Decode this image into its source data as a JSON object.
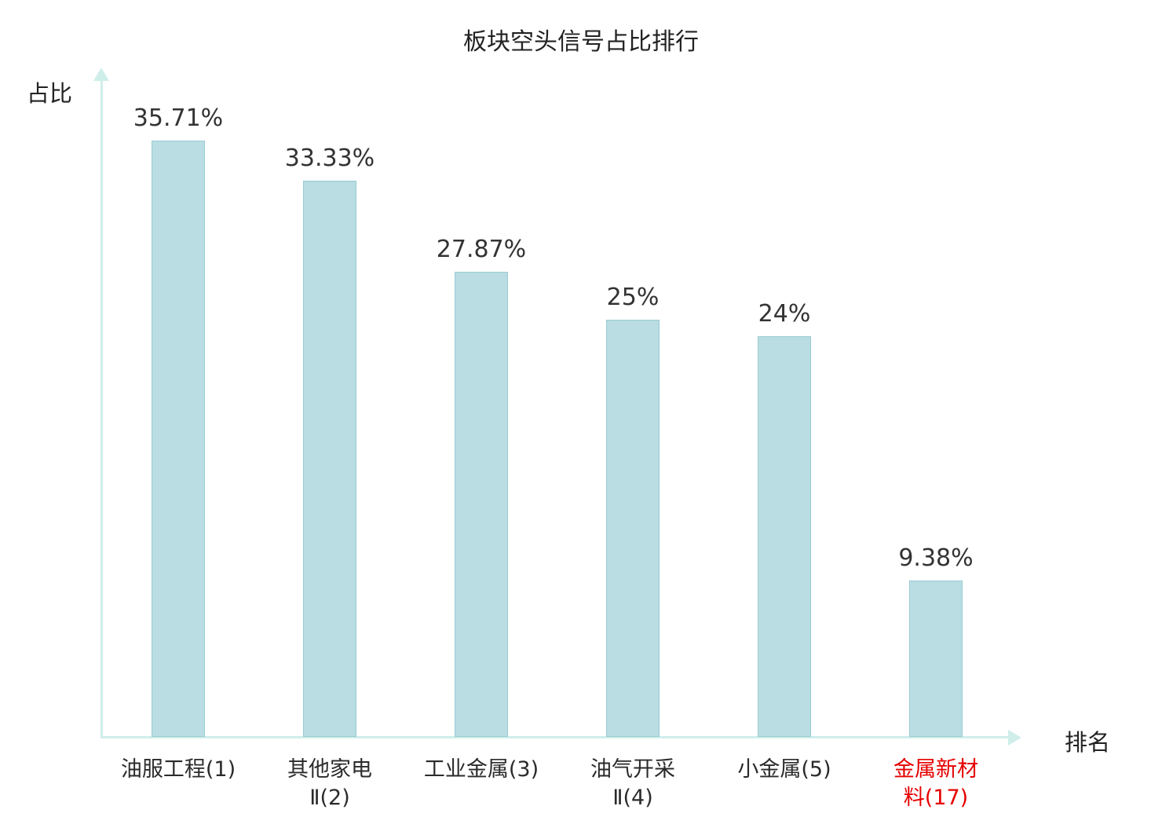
{
  "chart_data": {
    "type": "bar",
    "title": "板块空头信号占比排行",
    "xlabel": "排名",
    "ylabel": "占比",
    "ylim": [
      0,
      40
    ],
    "grid": false,
    "legend": false,
    "categories": [
      "油服工程(1)",
      "其他家电\nⅡ(2)",
      "工业金属(3)",
      "油气开采\nⅡ(4)",
      "小金属(5)",
      "金属新材\n料(17)"
    ],
    "values": [
      35.71,
      33.33,
      27.87,
      25,
      24,
      9.38
    ],
    "value_labels": [
      "35.71%",
      "33.33%",
      "27.87%",
      "25%",
      "24%",
      "9.38%"
    ],
    "highlight_index": 5,
    "colors": {
      "bar_fill": "#b9dde2",
      "bar_border": "#9acbd3",
      "axis": "#cfeeea",
      "value_label": "#333333",
      "highlight_label": "#e60000"
    }
  }
}
